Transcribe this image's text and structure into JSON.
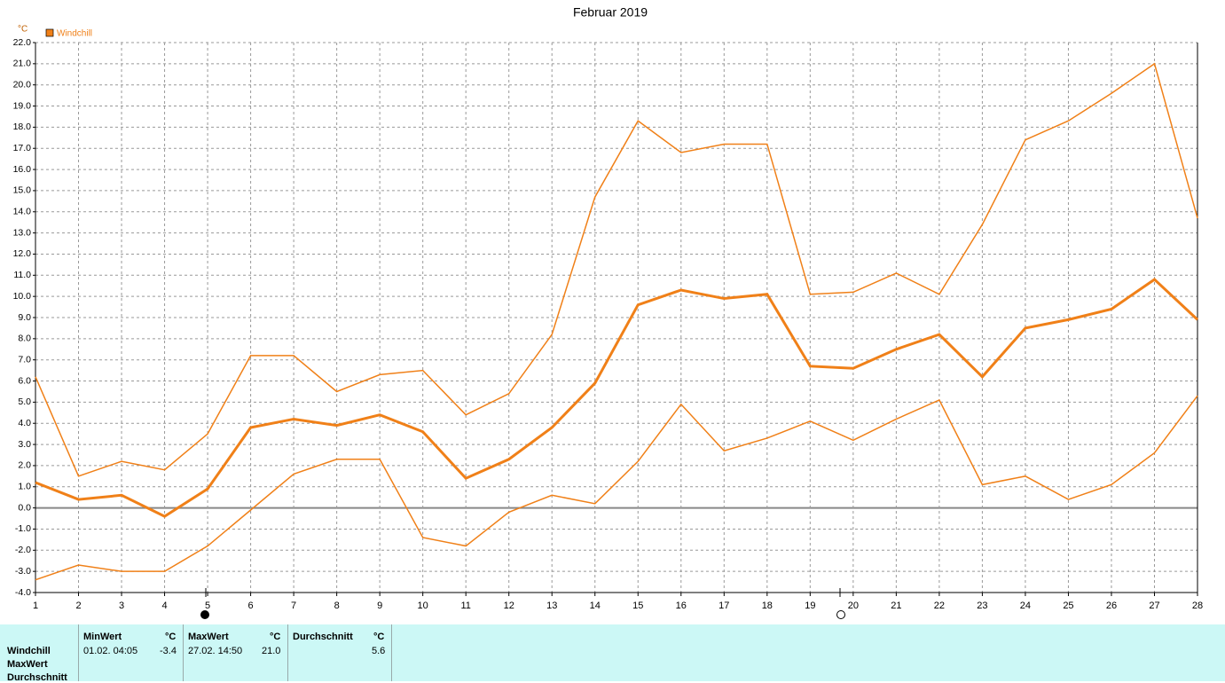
{
  "chart_data": {
    "type": "line",
    "title": "Februar 2019",
    "y_unit": "°C",
    "categories": [
      "1",
      "2",
      "3",
      "4",
      "5",
      "6",
      "7",
      "8",
      "9",
      "10",
      "11",
      "12",
      "13",
      "14",
      "15",
      "16",
      "17",
      "18",
      "19",
      "20",
      "21",
      "22",
      "23",
      "24",
      "25",
      "26",
      "27",
      "28"
    ],
    "series": [
      {
        "name": "Windchill",
        "color": "#f08018",
        "width": 3,
        "values": [
          1.2,
          0.4,
          0.6,
          -0.4,
          0.9,
          3.8,
          4.2,
          3.9,
          4.4,
          3.6,
          1.4,
          2.3,
          3.8,
          5.9,
          9.6,
          10.3,
          9.9,
          10.1,
          6.7,
          6.6,
          7.5,
          8.2,
          6.2,
          8.5,
          8.9,
          9.4,
          10.8,
          8.9
        ]
      },
      {
        "color": "#f08018",
        "width": 1.5,
        "values": [
          6.2,
          1.5,
          2.2,
          1.8,
          3.5,
          7.2,
          7.2,
          5.5,
          6.3,
          6.5,
          4.4,
          5.4,
          8.2,
          14.7,
          18.3,
          16.8,
          17.2,
          17.2,
          10.1,
          10.2,
          11.1,
          10.1,
          13.4,
          17.4,
          18.3,
          19.6,
          21.0,
          13.7
        ]
      },
      {
        "color": "#f08018",
        "width": 1.5,
        "values": [
          -3.4,
          -2.7,
          -3.0,
          -3.0,
          -1.8,
          -0.1,
          1.6,
          2.3,
          2.3,
          -1.4,
          -1.8,
          -0.2,
          0.6,
          0.2,
          2.2,
          4.9,
          2.7,
          3.3,
          4.1,
          3.2,
          4.2,
          5.1,
          1.1,
          1.5,
          0.4,
          1.1,
          2.6,
          5.3
        ]
      }
    ],
    "ylim": [
      -4,
      22
    ],
    "yticks": [
      {
        "value": -4,
        "label": "-4.0"
      },
      {
        "value": -3,
        "label": "-3.0"
      },
      {
        "value": -2,
        "label": "-2.0"
      },
      {
        "value": -1,
        "label": "-1.0"
      },
      {
        "value": 0,
        "label": "0.0"
      },
      {
        "value": 1,
        "label": "1.0"
      },
      {
        "value": 2,
        "label": "2.0"
      },
      {
        "value": 3,
        "label": "3.0"
      },
      {
        "value": 4,
        "label": "4.0"
      },
      {
        "value": 5,
        "label": "5.0"
      },
      {
        "value": 6,
        "label": "6.0"
      },
      {
        "value": 7,
        "label": "7.0"
      },
      {
        "value": 8,
        "label": "8.0"
      },
      {
        "value": 9,
        "label": "9.0"
      },
      {
        "value": 10,
        "label": "10.0"
      },
      {
        "value": 11,
        "label": "11.0"
      },
      {
        "value": 12,
        "label": "12.0"
      },
      {
        "value": 13,
        "label": "13.0"
      },
      {
        "value": 14,
        "label": "14.0"
      },
      {
        "value": 15,
        "label": "15.0"
      },
      {
        "value": 16,
        "label": "16.0"
      },
      {
        "value": 17,
        "label": "17.0"
      },
      {
        "value": 18,
        "label": "18.0"
      },
      {
        "value": 19,
        "label": "19.0"
      },
      {
        "value": 20,
        "label": "20.0"
      },
      {
        "value": 21,
        "label": "21.0"
      },
      {
        "value": 22,
        "label": "22.0"
      }
    ],
    "grid": true
  },
  "table": {
    "row_labels": [
      "Windchill",
      "MaxWert",
      "Durchschnitt"
    ],
    "columns": [
      {
        "header": "MinWert",
        "unit": "°C",
        "time": "01.02.  04:05",
        "value": "-3.4"
      },
      {
        "header": "MaxWert",
        "unit": "°C",
        "time": "27.02.  14:50",
        "value": "21.0"
      },
      {
        "header": "Durchschnitt",
        "unit": "°C",
        "value": "5.6"
      }
    ]
  }
}
